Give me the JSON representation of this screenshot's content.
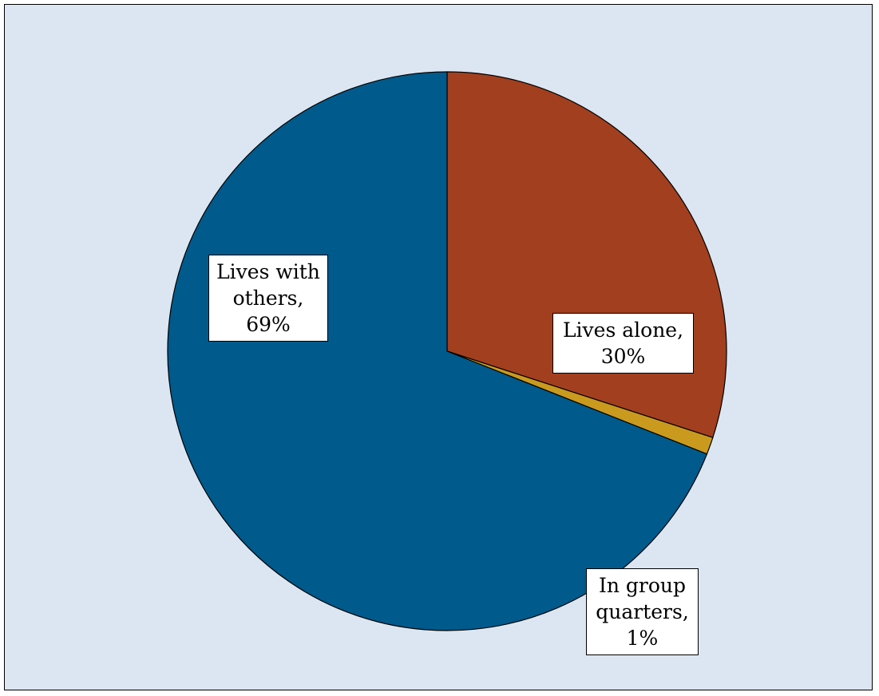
{
  "chart_data": {
    "type": "pie",
    "title": "",
    "start_angle_deg": 90,
    "direction": "clockwise",
    "slices": [
      {
        "name": "Lives alone",
        "value": 30,
        "label_lines": [
          "Lives alone,",
          "30%"
        ],
        "color": "#a23f1f"
      },
      {
        "name": "In group quarters",
        "value": 1,
        "label_lines": [
          "In group",
          "quarters,",
          "1%"
        ],
        "color": "#c99a1e"
      },
      {
        "name": "Lives with others",
        "value": 69,
        "label_lines": [
          "Lives with",
          "others,",
          "69%"
        ],
        "color": "#005a8c"
      }
    ],
    "background_color": "#dce6f2",
    "legend": "none",
    "data_labels": "boxed"
  }
}
